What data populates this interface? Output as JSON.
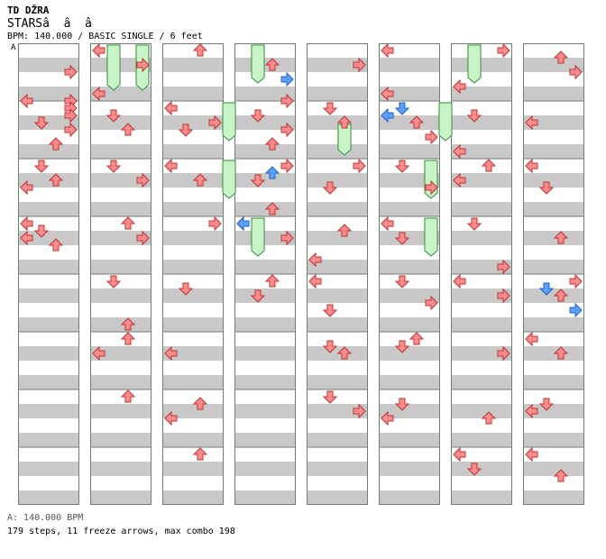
{
  "header": {
    "title": "TD DŽRA",
    "song": "STARSâ  â  â",
    "info": "BPM: 140.000 / BASIC SINGLE / 6 feet"
  },
  "bpm_marker": "A",
  "footer": {
    "bpm_line": "A: 140.000 BPM",
    "stats": "179 steps, 11 freeze arrows, max combo 198"
  },
  "colors": {
    "stripe": "#c8c8c8",
    "border": "#777777",
    "arrow_red": "#ff8c8c",
    "arrow_blue": "#5aa0ff",
    "freeze": "#c8f5c8"
  },
  "chart_data": {
    "type": "step-chart",
    "columns": 8,
    "measures_per_column": 8,
    "lanes": [
      "left",
      "down",
      "up",
      "right"
    ],
    "notes": [
      [
        1,
        0,
        3,
        "R"
      ],
      [
        1,
        0,
        7,
        "L"
      ],
      [
        1,
        0,
        7,
        "R"
      ],
      [
        1,
        1,
        0,
        "R"
      ],
      [
        1,
        1,
        1,
        "R"
      ],
      [
        1,
        1,
        2,
        "D"
      ],
      [
        1,
        1,
        3,
        "R"
      ],
      [
        1,
        1,
        5,
        "U"
      ],
      [
        1,
        2,
        0,
        "D"
      ],
      [
        1,
        2,
        2,
        "U"
      ],
      [
        1,
        2,
        3,
        "L"
      ],
      [
        1,
        3,
        0,
        "L"
      ],
      [
        1,
        3,
        1,
        "D"
      ],
      [
        1,
        3,
        2,
        "L"
      ],
      [
        1,
        3,
        3,
        "U"
      ],
      [
        2,
        0,
        0,
        "L"
      ],
      [
        2,
        0,
        2,
        "R"
      ],
      [
        2,
        0,
        6,
        "L"
      ],
      [
        2,
        1,
        1,
        "D"
      ],
      [
        2,
        1,
        3,
        "U"
      ],
      [
        2,
        2,
        0,
        "D"
      ],
      [
        2,
        2,
        2,
        "R"
      ],
      [
        2,
        3,
        0,
        "U"
      ],
      [
        2,
        3,
        2,
        "R"
      ],
      [
        2,
        4,
        0,
        "D"
      ],
      [
        2,
        4,
        6,
        "U"
      ],
      [
        2,
        5,
        0,
        "U"
      ],
      [
        2,
        5,
        2,
        "L"
      ],
      [
        2,
        6,
        0,
        "U"
      ],
      [
        3,
        0,
        0,
        "U"
      ],
      [
        3,
        1,
        0,
        "L"
      ],
      [
        3,
        1,
        2,
        "R"
      ],
      [
        3,
        1,
        3,
        "D"
      ],
      [
        3,
        2,
        0,
        "L"
      ],
      [
        3,
        2,
        2,
        "U"
      ],
      [
        3,
        3,
        0,
        "R"
      ],
      [
        3,
        4,
        1,
        "D"
      ],
      [
        3,
        5,
        2,
        "L"
      ],
      [
        3,
        6,
        1,
        "U"
      ],
      [
        3,
        6,
        3,
        "L"
      ],
      [
        3,
        7,
        0,
        "U"
      ],
      [
        4,
        0,
        2,
        "U"
      ],
      [
        4,
        0,
        7,
        "R"
      ],
      [
        4,
        1,
        1,
        "D"
      ],
      [
        4,
        1,
        3,
        "R"
      ],
      [
        4,
        1,
        5,
        "U"
      ],
      [
        4,
        2,
        0,
        "R"
      ],
      [
        4,
        2,
        2,
        "D"
      ],
      [
        4,
        2,
        6,
        "U"
      ],
      [
        4,
        3,
        0,
        "L"
      ],
      [
        4,
        3,
        2,
        "R"
      ],
      [
        4,
        4,
        0,
        "U"
      ],
      [
        4,
        4,
        2,
        "D"
      ],
      [
        5,
        0,
        2,
        "R"
      ],
      [
        5,
        1,
        0,
        "D"
      ],
      [
        5,
        1,
        2,
        "U"
      ],
      [
        5,
        2,
        0,
        "R"
      ],
      [
        5,
        2,
        3,
        "D"
      ],
      [
        5,
        3,
        1,
        "U"
      ],
      [
        5,
        3,
        5,
        "L"
      ],
      [
        5,
        4,
        0,
        "L"
      ],
      [
        5,
        4,
        4,
        "D"
      ],
      [
        5,
        5,
        1,
        "D"
      ],
      [
        5,
        5,
        2,
        "U"
      ],
      [
        5,
        6,
        0,
        "D"
      ],
      [
        5,
        6,
        2,
        "R"
      ],
      [
        6,
        0,
        0,
        "L"
      ],
      [
        6,
        0,
        6,
        "L"
      ],
      [
        6,
        1,
        2,
        "U"
      ],
      [
        6,
        1,
        4,
        "R"
      ],
      [
        6,
        2,
        0,
        "D"
      ],
      [
        6,
        2,
        3,
        "R"
      ],
      [
        6,
        3,
        0,
        "L"
      ],
      [
        6,
        3,
        2,
        "D"
      ],
      [
        6,
        4,
        0,
        "D"
      ],
      [
        6,
        4,
        3,
        "R"
      ],
      [
        6,
        5,
        0,
        "U"
      ],
      [
        6,
        5,
        1,
        "D"
      ],
      [
        6,
        6,
        1,
        "D"
      ],
      [
        6,
        6,
        3,
        "L"
      ],
      [
        7,
        0,
        0,
        "R"
      ],
      [
        7,
        0,
        5,
        "L"
      ],
      [
        7,
        1,
        1,
        "D"
      ],
      [
        7,
        1,
        6,
        "L"
      ],
      [
        7,
        2,
        0,
        "U"
      ],
      [
        7,
        2,
        2,
        "L"
      ],
      [
        7,
        3,
        0,
        "D"
      ],
      [
        7,
        3,
        6,
        "R"
      ],
      [
        7,
        4,
        0,
        "L"
      ],
      [
        7,
        4,
        2,
        "R"
      ],
      [
        7,
        5,
        2,
        "R"
      ],
      [
        7,
        6,
        3,
        "U"
      ],
      [
        7,
        7,
        0,
        "L"
      ],
      [
        7,
        7,
        2,
        "D"
      ],
      [
        8,
        0,
        1,
        "U"
      ],
      [
        8,
        0,
        3,
        "R"
      ],
      [
        8,
        1,
        2,
        "L"
      ],
      [
        8,
        2,
        0,
        "L"
      ],
      [
        8,
        2,
        3,
        "D"
      ],
      [
        8,
        3,
        2,
        "U"
      ],
      [
        8,
        4,
        0,
        "R"
      ],
      [
        8,
        4,
        2,
        "U"
      ],
      [
        8,
        5,
        0,
        "L"
      ],
      [
        8,
        5,
        2,
        "U"
      ],
      [
        8,
        6,
        1,
        "D"
      ],
      [
        8,
        6,
        2,
        "L"
      ],
      [
        8,
        7,
        0,
        "L"
      ],
      [
        8,
        7,
        3,
        "U"
      ]
    ],
    "blue_notes": [
      [
        4,
        0,
        4,
        "R"
      ],
      [
        4,
        2,
        1,
        "U"
      ],
      [
        4,
        3,
        0,
        "L"
      ],
      [
        6,
        1,
        0,
        "D"
      ],
      [
        6,
        1,
        1,
        "L"
      ],
      [
        8,
        4,
        1,
        "D"
      ],
      [
        8,
        4,
        4,
        "R"
      ]
    ],
    "freezes": [
      [
        2,
        1,
        0,
        0,
        4
      ],
      [
        2,
        3,
        0,
        0,
        4
      ],
      [
        3,
        4,
        1,
        0,
        3
      ],
      [
        3,
        4,
        2,
        0,
        3
      ],
      [
        3,
        6,
        0,
        0,
        3
      ],
      [
        3,
        6,
        3,
        0,
        3
      ],
      [
        5,
        2,
        1,
        3,
        5
      ],
      [
        6,
        3,
        2,
        0,
        3
      ],
      [
        6,
        4,
        1,
        0,
        3
      ],
      [
        6,
        6,
        0,
        0,
        3
      ],
      [
        6,
        3,
        3,
        0,
        3
      ]
    ]
  }
}
